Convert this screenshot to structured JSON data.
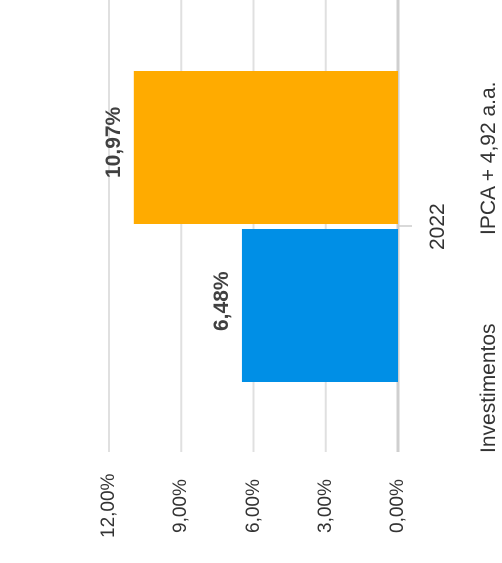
{
  "chart_data": {
    "type": "bar",
    "orientation": "rotated-horizontal",
    "categories": [
      "2022"
    ],
    "series": [
      {
        "name": "IPCA + 4,92 a.a.",
        "values": [
          10.97
        ],
        "color": "#FFAB00",
        "data_label": "10,97%"
      },
      {
        "name": "Investimentos",
        "values": [
          6.48
        ],
        "color": "#008FE6",
        "data_label": "6,48%"
      }
    ],
    "ylim": [
      0,
      12
    ],
    "ticks": [
      {
        "value": 0,
        "label": "0,00%"
      },
      {
        "value": 3,
        "label": "3,00%"
      },
      {
        "value": 6,
        "label": "6,00%"
      },
      {
        "value": 9,
        "label": "9,00%"
      },
      {
        "value": 12,
        "label": "12,00%"
      }
    ],
    "grid": true,
    "legend": "right",
    "title": "",
    "xlabel": "",
    "ylabel": ""
  }
}
